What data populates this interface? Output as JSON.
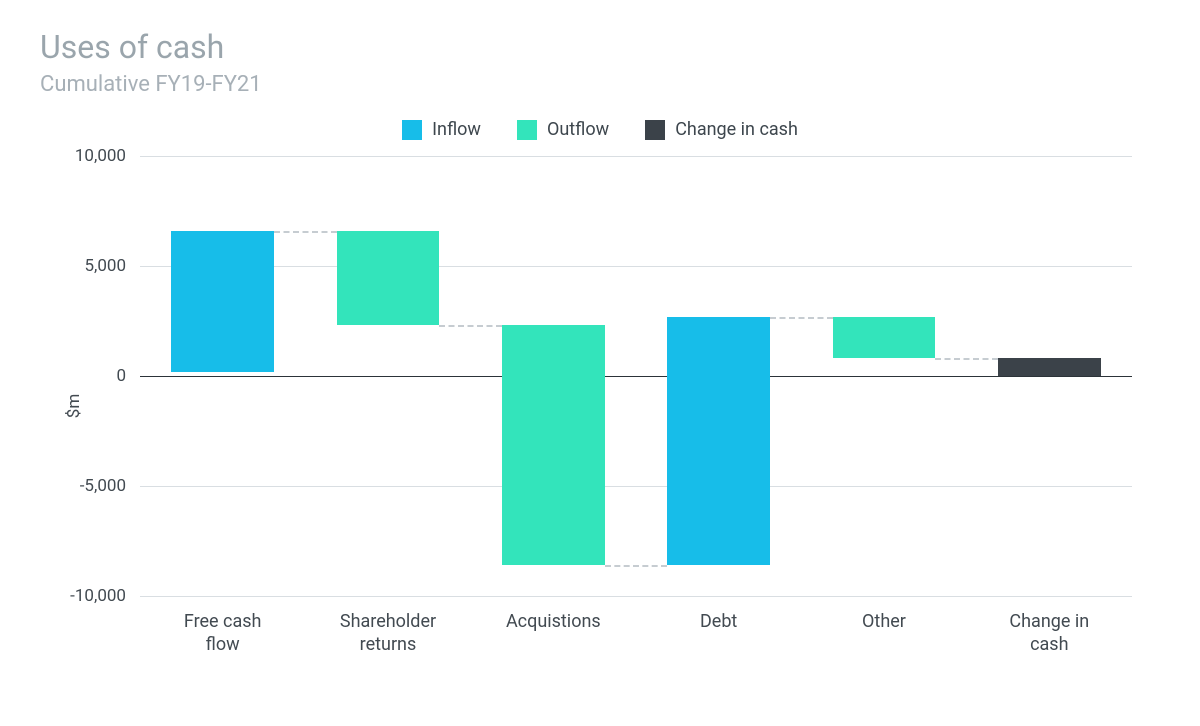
{
  "chart": {
    "type": "waterfall",
    "title": "Uses of cash",
    "subtitle": "Cumulative FY19-FY21",
    "title_fontsize": 32,
    "subtitle_fontsize": 22,
    "title_color": "#9aa5ac",
    "subtitle_color": "#a7b0b7",
    "legend": {
      "fontsize": 18,
      "items": [
        {
          "label": "Inflow",
          "color": "#17bde9"
        },
        {
          "label": "Outflow",
          "color": "#33e4bb"
        },
        {
          "label": "Change in cash",
          "color": "#3b4249"
        }
      ]
    },
    "ylabel": "$m",
    "ylabel_fontsize": 17,
    "axis_label_color": "#424a51",
    "ylim": [
      -10000,
      10000
    ],
    "ytick_step": 5000,
    "ytick_labels": [
      "-10,000",
      "-5,000",
      "0",
      "5,000",
      "10,000"
    ],
    "grid_color": "#d9dee2",
    "zero_line_color": "#2c3339",
    "connector_color": "#c6ccd1",
    "background_color": "#ffffff",
    "bar_width": 0.62,
    "categories": [
      "Free cash\nflow",
      "Shareholder\nreturns",
      "Acquistions",
      "Debt",
      "Other",
      "Change in\ncash"
    ],
    "bars": [
      {
        "start": 200,
        "end": 6600,
        "kind": "inflow"
      },
      {
        "start": 6600,
        "end": 2300,
        "kind": "outflow"
      },
      {
        "start": 2300,
        "end": -8600,
        "kind": "outflow"
      },
      {
        "start": -8600,
        "end": 2700,
        "kind": "inflow"
      },
      {
        "start": 2700,
        "end": 800,
        "kind": "outflow"
      },
      {
        "start": 0,
        "end": 800,
        "kind": "change"
      }
    ],
    "colors": {
      "inflow": "#17bde9",
      "outflow": "#33e4bb",
      "change": "#3b4249"
    }
  }
}
